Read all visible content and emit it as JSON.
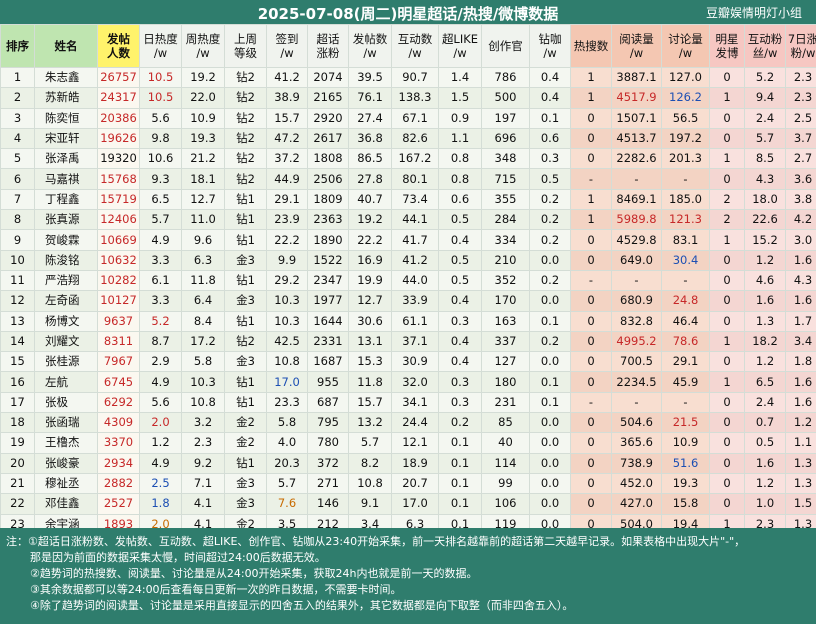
{
  "header": {
    "title": "2025-07-08(周二)明星超话/热搜/微博数据",
    "brand": "豆瓣娱情明灯小组"
  },
  "columns": [
    "排序",
    "姓名",
    "发帖\n人数",
    "日热度\n/w",
    "周热度\n/w",
    "上周\n等级",
    "签到\n/w",
    "超话\n涨粉",
    "发帖数\n/w",
    "互动数\n/w",
    "超LIKE\n/w",
    "创作官",
    "钻咖\n/w",
    "热搜数",
    "阅读量\n/w",
    "讨论量\n/w",
    "明星\n发博",
    "互动粉\n丝/w",
    "7日涨\n粉/w"
  ],
  "rows": [
    [
      "1",
      "朱志鑫",
      "26757",
      "10.5",
      "19.2",
      "钻2",
      "41.2",
      "2074",
      "39.5",
      "90.7",
      "1.4",
      "786",
      "0.4",
      "1",
      "3887.1",
      "127.0",
      "0",
      "5.2",
      "2.3"
    ],
    [
      "2",
      "苏新皓",
      "24317",
      "10.5",
      "22.0",
      "钻2",
      "38.9",
      "2165",
      "76.1",
      "138.3",
      "1.5",
      "500",
      "0.4",
      "1",
      "4517.9",
      "126.2",
      "1",
      "9.4",
      "2.3"
    ],
    [
      "3",
      "陈奕恒",
      "20386",
      "5.6",
      "10.9",
      "钻2",
      "15.7",
      "2920",
      "27.4",
      "67.1",
      "0.9",
      "197",
      "0.1",
      "0",
      "1507.1",
      "56.5",
      "0",
      "2.4",
      "2.5"
    ],
    [
      "4",
      "宋亚轩",
      "19626",
      "9.8",
      "19.3",
      "钻2",
      "47.2",
      "2617",
      "36.8",
      "82.6",
      "1.1",
      "696",
      "0.6",
      "0",
      "4513.7",
      "197.2",
      "0",
      "5.7",
      "3.7"
    ],
    [
      "5",
      "张泽禹",
      "19320",
      "10.6",
      "21.2",
      "钻2",
      "37.2",
      "1808",
      "86.5",
      "167.2",
      "0.8",
      "348",
      "0.3",
      "0",
      "2282.6",
      "201.3",
      "1",
      "8.5",
      "2.7"
    ],
    [
      "6",
      "马嘉祺",
      "15768",
      "9.3",
      "18.1",
      "钻2",
      "44.9",
      "2506",
      "27.8",
      "80.1",
      "0.8",
      "715",
      "0.5",
      "-",
      "-",
      "-",
      "0",
      "4.3",
      "3.6"
    ],
    [
      "7",
      "丁程鑫",
      "15719",
      "6.5",
      "12.7",
      "钻1",
      "29.1",
      "1809",
      "40.7",
      "73.4",
      "0.6",
      "355",
      "0.2",
      "1",
      "8469.1",
      "185.0",
      "2",
      "18.0",
      "3.8"
    ],
    [
      "8",
      "张真源",
      "12406",
      "5.7",
      "11.0",
      "钻1",
      "23.9",
      "2363",
      "19.2",
      "44.1",
      "0.5",
      "284",
      "0.2",
      "1",
      "5989.8",
      "121.3",
      "2",
      "22.6",
      "4.2"
    ],
    [
      "9",
      "贺峻霖",
      "10669",
      "4.9",
      "9.6",
      "钻1",
      "22.2",
      "1890",
      "22.2",
      "41.7",
      "0.4",
      "334",
      "0.2",
      "0",
      "4529.8",
      "83.1",
      "1",
      "15.2",
      "3.0"
    ],
    [
      "10",
      "陈浚铭",
      "10632",
      "3.3",
      "6.3",
      "金3",
      "9.9",
      "1522",
      "16.9",
      "41.2",
      "0.5",
      "210",
      "0.0",
      "0",
      "649.0",
      "30.4",
      "0",
      "1.2",
      "1.6"
    ],
    [
      "11",
      "严浩翔",
      "10282",
      "6.1",
      "11.8",
      "钻1",
      "29.2",
      "2347",
      "19.9",
      "44.0",
      "0.5",
      "352",
      "0.2",
      "-",
      "-",
      "-",
      "0",
      "4.6",
      "4.3"
    ],
    [
      "12",
      "左奇函",
      "10127",
      "3.3",
      "6.4",
      "金3",
      "10.3",
      "1977",
      "12.7",
      "33.9",
      "0.4",
      "170",
      "0.0",
      "0",
      "680.9",
      "24.8",
      "0",
      "1.6",
      "1.6"
    ],
    [
      "13",
      "杨博文",
      "9637",
      "5.2",
      "8.4",
      "钻1",
      "10.3",
      "1644",
      "30.6",
      "61.1",
      "0.3",
      "163",
      "0.1",
      "0",
      "832.8",
      "46.4",
      "0",
      "1.3",
      "1.7"
    ],
    [
      "14",
      "刘耀文",
      "8311",
      "8.7",
      "17.2",
      "钻2",
      "42.5",
      "2331",
      "13.1",
      "37.1",
      "0.4",
      "337",
      "0.2",
      "0",
      "4995.2",
      "78.6",
      "1",
      "18.2",
      "3.4"
    ],
    [
      "15",
      "张桂源",
      "7967",
      "2.9",
      "5.8",
      "金3",
      "10.8",
      "1687",
      "15.3",
      "30.9",
      "0.4",
      "127",
      "0.0",
      "0",
      "700.5",
      "29.1",
      "0",
      "1.2",
      "1.8"
    ],
    [
      "16",
      "左航",
      "6745",
      "4.9",
      "10.3",
      "钻1",
      "17.0",
      "955",
      "11.8",
      "32.0",
      "0.3",
      "180",
      "0.1",
      "0",
      "2234.5",
      "45.9",
      "1",
      "6.5",
      "1.6"
    ],
    [
      "17",
      "张极",
      "6292",
      "5.6",
      "10.8",
      "钻1",
      "23.3",
      "687",
      "15.7",
      "34.1",
      "0.3",
      "231",
      "0.1",
      "-",
      "-",
      "-",
      "0",
      "2.4",
      "1.6"
    ],
    [
      "18",
      "张函瑞",
      "4309",
      "2.0",
      "3.2",
      "金2",
      "5.8",
      "795",
      "13.2",
      "24.4",
      "0.2",
      "85",
      "0.0",
      "0",
      "504.6",
      "21.5",
      "0",
      "0.7",
      "1.2"
    ],
    [
      "19",
      "王橹杰",
      "3370",
      "1.2",
      "2.3",
      "金2",
      "4.0",
      "780",
      "5.7",
      "12.1",
      "0.1",
      "40",
      "0.0",
      "0",
      "365.6",
      "10.9",
      "0",
      "0.5",
      "1.1"
    ],
    [
      "20",
      "张峻豪",
      "2934",
      "4.9",
      "9.2",
      "钻1",
      "20.3",
      "372",
      "8.2",
      "18.9",
      "0.1",
      "114",
      "0.0",
      "0",
      "738.9",
      "51.6",
      "0",
      "1.6",
      "1.3"
    ],
    [
      "21",
      "穆祉丞",
      "2882",
      "2.5",
      "7.1",
      "金3",
      "5.7",
      "271",
      "10.8",
      "20.7",
      "0.1",
      "99",
      "0.0",
      "0",
      "452.0",
      "19.3",
      "0",
      "1.2",
      "1.3"
    ],
    [
      "22",
      "邓佳鑫",
      "2527",
      "1.8",
      "4.1",
      "金3",
      "7.6",
      "146",
      "9.1",
      "17.0",
      "0.1",
      "106",
      "0.0",
      "0",
      "427.0",
      "15.8",
      "0",
      "1.0",
      "1.5"
    ],
    [
      "23",
      "余宇涵",
      "1893",
      "2.0",
      "4.1",
      "金2",
      "3.5",
      "212",
      "3.4",
      "6.3",
      "0.1",
      "119",
      "0.0",
      "0",
      "504.0",
      "19.4",
      "1",
      "2.3",
      "1.3"
    ]
  ],
  "styles": {
    "red_posters": [
      0,
      1,
      2,
      3,
      5,
      6,
      7,
      8,
      9,
      10,
      11,
      12,
      13,
      14,
      15,
      16,
      17,
      18,
      19,
      20,
      21,
      22
    ],
    "red_cells": [
      [
        0,
        3
      ],
      [
        1,
        3
      ],
      [
        1,
        14
      ],
      [
        7,
        14
      ],
      [
        7,
        15
      ],
      [
        13,
        14
      ],
      [
        13,
        15
      ],
      [
        17,
        3
      ],
      [
        11,
        15
      ],
      [
        17,
        15
      ],
      [
        12,
        3
      ]
    ],
    "blue_cells": [
      [
        1,
        15
      ],
      [
        20,
        3
      ],
      [
        21,
        3
      ],
      [
        15,
        6
      ],
      [
        19,
        15
      ],
      [
        9,
        15
      ]
    ],
    "orange_cells": [
      [
        21,
        6
      ],
      [
        22,
        3
      ]
    ]
  },
  "notes": [
    "注：①超话日涨粉数、发帖数、互动数、超LIKE、创作官、钻咖从23:40开始采集，前一天排名越靠前的超话第二天越早记录。如果表格中出现大片\"-\"，",
    "那是因为前面的数据采集太慢，时间超过24:00后数据无效。",
    "②趋势词的热搜数、阅读量、讨论量是从24:00开始采集，获取24h内也就是前一天的数据。",
    "③其余数据都可以等24:00后查看每日更新一次的昨日数据，不需要卡时间。",
    "④除了趋势词的阅读量、讨论量是采用直接显示的四舍五入的结果外，其它数据都是向下取整（而非四舍五入）。"
  ]
}
